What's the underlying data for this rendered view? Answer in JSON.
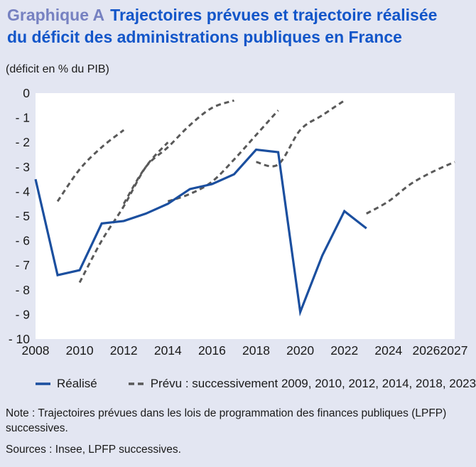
{
  "header": {
    "label": "Graphique A",
    "title_line1": "Trajectoires prévues et trajectoire réalisée",
    "title_line2": "du déficit des administrations publiques en France",
    "subtitle": "(déficit en % du PIB)"
  },
  "colors": {
    "background": "#e3e6f2",
    "plot_background": "#ffffff",
    "graphique_label_color": "#7681c1",
    "title_color": "#1356c9",
    "text_color": "#1a1a1a",
    "realise_color": "#1b4f9f",
    "prevu_color": "#595959"
  },
  "legend": {
    "realise_label": "Réalisé",
    "prevu_label": "Prévu : successivement 2009, 2010, 2012, 2014, 2018, 2023"
  },
  "note": "Note : Trajectoires prévues dans les lois de programmation des finances publiques (LPFP) successives.",
  "sources": "Sources : Insee, LPFP successives.",
  "chart_data": {
    "type": "line",
    "title": "Trajectoires prévues et trajectoire réalisée du déficit des administrations publiques en France",
    "ylabel": "déficit en % du PIB",
    "grid": false,
    "legend_position": "bottom",
    "x_axis": {
      "range": [
        2008,
        2027
      ],
      "ticks": [
        2008,
        2010,
        2012,
        2014,
        2016,
        2018,
        2020,
        2022,
        2024,
        2026,
        2027
      ]
    },
    "y_axis": {
      "range": [
        -10,
        0
      ],
      "tick_values": [
        0,
        -1,
        -2,
        -3,
        -4,
        -5,
        -6,
        -7,
        -8,
        -9,
        -10
      ],
      "tick_labels": [
        "0",
        "- 1",
        "- 2",
        "- 3",
        "- 4",
        "- 5",
        "- 6",
        "- 7",
        "- 8",
        "- 9",
        "- 10"
      ]
    },
    "series": [
      {
        "name": "Réalisé",
        "style": "solid",
        "color": "#1b4f9f",
        "points": [
          [
            2008,
            -3.5
          ],
          [
            2009,
            -7.4
          ],
          [
            2010,
            -7.2
          ],
          [
            2011,
            -5.3
          ],
          [
            2012,
            -5.2
          ],
          [
            2013,
            -4.9
          ],
          [
            2014,
            -4.5
          ],
          [
            2015,
            -3.9
          ],
          [
            2016,
            -3.7
          ],
          [
            2017,
            -3.3
          ],
          [
            2018,
            -2.3
          ],
          [
            2019,
            -2.4
          ],
          [
            2020,
            -8.9
          ],
          [
            2021,
            -6.6
          ],
          [
            2022,
            -4.8
          ],
          [
            2023,
            -5.5
          ]
        ]
      },
      {
        "name": "Prévu LPFP 2009",
        "style": "dashed",
        "color": "#595959",
        "points": [
          [
            2009,
            -4.4
          ],
          [
            2010,
            -3.1
          ],
          [
            2011,
            -2.2
          ],
          [
            2012,
            -1.5
          ]
        ]
      },
      {
        "name": "Prévu LPFP 2010",
        "style": "dashed",
        "color": "#595959",
        "points": [
          [
            2010,
            -7.7
          ],
          [
            2011,
            -6.0
          ],
          [
            2012,
            -4.6
          ],
          [
            2013,
            -3.0
          ],
          [
            2014,
            -2.0
          ]
        ]
      },
      {
        "name": "Prévu LPFP 2012",
        "style": "dashed",
        "color": "#595959",
        "points": [
          [
            2012,
            -4.5
          ],
          [
            2013,
            -3.0
          ],
          [
            2014,
            -2.2
          ],
          [
            2015,
            -1.3
          ],
          [
            2016,
            -0.6
          ],
          [
            2017,
            -0.3
          ]
        ]
      },
      {
        "name": "Prévu LPFP 2014",
        "style": "dashed",
        "color": "#595959",
        "points": [
          [
            2014,
            -4.4
          ],
          [
            2015,
            -4.1
          ],
          [
            2016,
            -3.6
          ],
          [
            2017,
            -2.7
          ],
          [
            2018,
            -1.7
          ],
          [
            2019,
            -0.7
          ]
        ]
      },
      {
        "name": "Prévu LPFP 2018",
        "style": "dashed",
        "color": "#595959",
        "points": [
          [
            2018,
            -2.8
          ],
          [
            2019,
            -2.9
          ],
          [
            2020,
            -1.5
          ],
          [
            2021,
            -0.9
          ],
          [
            2022,
            -0.3
          ]
        ]
      },
      {
        "name": "Prévu LPFP 2023",
        "style": "dashed",
        "color": "#595959",
        "points": [
          [
            2023,
            -4.9
          ],
          [
            2024,
            -4.4
          ],
          [
            2025,
            -3.7
          ],
          [
            2026,
            -3.2
          ],
          [
            2027,
            -2.8
          ]
        ]
      }
    ]
  }
}
